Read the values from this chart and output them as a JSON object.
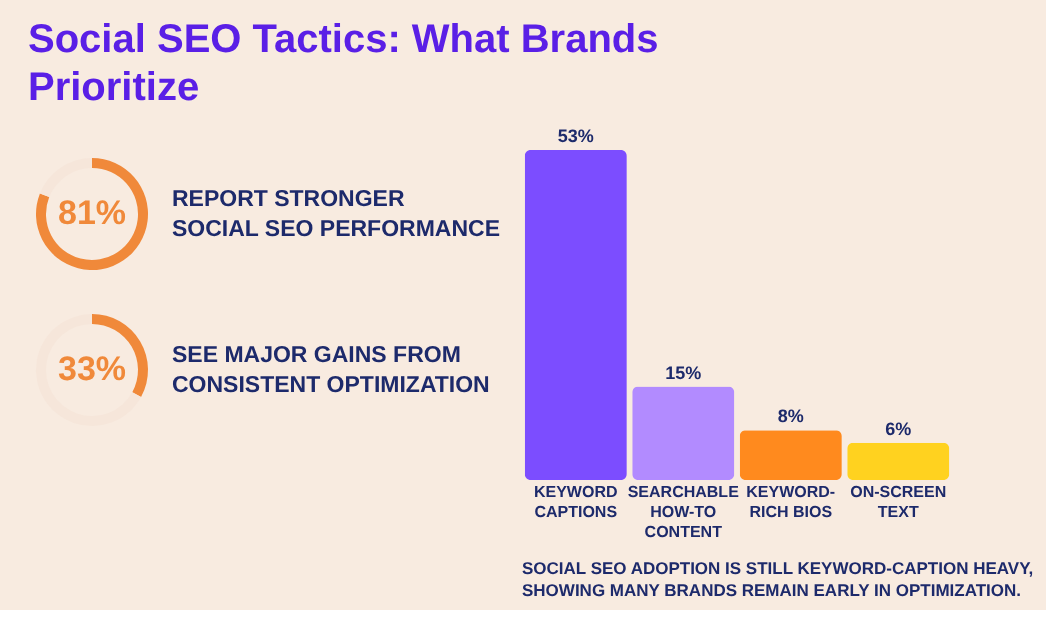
{
  "chart_data": [
    {
      "type": "bar",
      "title": "Social SEO Tactics: What Brands\nPrioritize",
      "categories": [
        "KEYWORD\nCAPTIONS",
        "SEARCHABLE\nHOW-TO\nCONTENT",
        "KEYWORD-\nRICH BIOS",
        "ON-SCREEN\nTEXT"
      ],
      "values": [
        53,
        15,
        8,
        6
      ],
      "value_labels": [
        "53%",
        "15%",
        "8%",
        "6%"
      ],
      "colors": [
        "#7c4dff",
        "#b28bff",
        "#ff8a1e",
        "#ffd21f"
      ],
      "annotations": [
        "SOCIAL SEO ADOPTION IS STILL KEYWORD-CAPTION HEAVY,\nSHOWING MANY BRANDS REMAIN EARLY IN OPTIMIZATION."
      ]
    },
    {
      "type": "donut",
      "title": "REPORT STRONGER\nSOCIAL SEO PERFORMANCE",
      "categories": [
        null,
        null
      ],
      "values": [
        81,
        19
      ],
      "value_labels": [
        "81%",
        null
      ],
      "colors": [
        "#f0893a",
        "#f6e6da"
      ]
    },
    {
      "type": "donut",
      "title": "SEE MAJOR GAINS FROM\nCONSISTENT OPTIMIZATION",
      "categories": [
        null,
        null
      ],
      "values": [
        33,
        67
      ],
      "value_labels": [
        "33%",
        null
      ],
      "colors": [
        "#f0893a",
        "#f6e6da"
      ]
    }
  ]
}
